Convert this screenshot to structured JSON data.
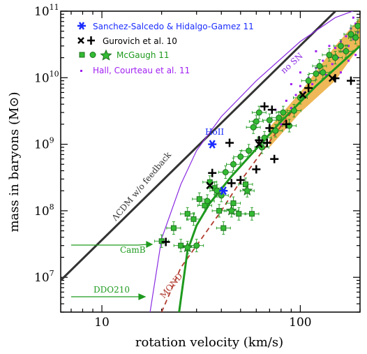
{
  "chart_data": {
    "type": "scatter",
    "xlabel": "rotation velocity (km/s)",
    "ylabel": "mass in baryons (M⊙)",
    "x_scale": "log",
    "y_scale": "log",
    "xlim": [
      6.2,
      200
    ],
    "ylim": [
      3000000,
      100000000000
    ],
    "x_ticks": [
      {
        "value": 10,
        "label": "10"
      },
      {
        "value": 100,
        "label": "100"
      }
    ],
    "y_ticks": [
      {
        "value": 10000000,
        "base": "10",
        "exp": "7"
      },
      {
        "value": 100000000,
        "base": "10",
        "exp": "8"
      },
      {
        "value": 1000000000,
        "base": "10",
        "exp": "9"
      },
      {
        "value": 10000000000,
        "base": "10",
        "exp": "10"
      },
      {
        "value": 100000000000,
        "base": "10",
        "exp": "11"
      }
    ],
    "colors": {
      "lcdm": "#333333",
      "no_sn": "#8a2be2",
      "mcgaugh": "#1e9a1e",
      "mcgaugh_fill": "#33bb33",
      "gurovich": "#000000",
      "sanchez": "#1a2cff",
      "hall": "#a020f0",
      "mond": "#b03a2e",
      "band": "#e8a020"
    },
    "legend": [
      {
        "label": "Sanchez-Salcedo & Hidalgo-Gamez 11",
        "color": "#1a2cff",
        "marker": "asterisk"
      },
      {
        "label": "Gurovich et al. 10",
        "color": "#000000",
        "marker": "cross-plus"
      },
      {
        "label": "McGaugh 11",
        "color": "#1e9a1e",
        "marker": "square-circle-star"
      },
      {
        "label": "Hall, Courteau et al. 11",
        "color": "#a020f0",
        "marker": "dot"
      }
    ],
    "annotations": {
      "lcdm": "ΛCDM w/o feedback",
      "no_sn": "no SN",
      "mond": "MOND",
      "holl": "HoII",
      "camb": "CamB",
      "ddo": "DDO210"
    },
    "lines": {
      "lcdm": {
        "x": [
          6.2,
          200
        ],
        "y": [
          9000000,
          230000000000
        ]
      },
      "no_sn": {
        "x": [
          17.5,
          20,
          25,
          30,
          40,
          60,
          100,
          150,
          200
        ],
        "y": [
          3000000,
          38000000,
          250000000,
          800000000,
          2600000000,
          9000000000,
          35000000000,
          80000000000,
          110000000000
        ]
      },
      "mcgaugh_fit": {
        "x": [
          24.5,
          27,
          30,
          35,
          45,
          60,
          80,
          120,
          200
        ],
        "y": [
          3000000,
          25000000,
          60000000,
          130000000,
          330000000,
          850000000,
          2200000000,
          7500000000,
          30000000000
        ]
      },
      "mond": {
        "x": [
          20,
          25,
          30,
          40,
          50,
          70,
          90
        ],
        "y": [
          3000000,
          14000000,
          30000000,
          100000000,
          280000000,
          1100000000,
          3000000000
        ]
      },
      "band": {
        "x": [
          70,
          100,
          150,
          200
        ],
        "y_low": [
          900000000,
          3000000000,
          9000000000,
          30000000000
        ],
        "y_high": [
          1800000000,
          6000000000,
          30000000000,
          80000000000
        ]
      }
    },
    "series": [
      {
        "name": "Sanchez-Salcedo & Hidalgo-Gamez 11",
        "marker": "asterisk",
        "points": [
          [
            36,
            1000000000
          ],
          [
            41,
            200000000
          ]
        ]
      },
      {
        "name": "Gurovich et al. 10",
        "marker": "plus",
        "points": [
          [
            21,
            34000000
          ],
          [
            36,
            370000000
          ],
          [
            44,
            1050000000
          ],
          [
            45,
            260000000
          ],
          [
            50,
            290000000
          ],
          [
            60,
            420000000
          ],
          [
            62,
            1150000000
          ],
          [
            66,
            3700000000
          ],
          [
            68,
            1050000000
          ],
          [
            70,
            1750000000
          ],
          [
            72,
            3300000000
          ],
          [
            74,
            600000000
          ],
          [
            85,
            2000000000
          ],
          [
            110,
            7000000000
          ],
          [
            150,
            9800000000
          ],
          [
            180,
            9000000000
          ]
        ]
      },
      {
        "name": "Gurovich et al. 10",
        "marker": "cross",
        "points": [
          [
            35,
            240000000
          ],
          [
            62,
            1000000000
          ],
          [
            103,
            5500000000
          ],
          [
            145,
            9800000000
          ]
        ]
      },
      {
        "name": "McGaugh 11",
        "marker": "square",
        "points": [
          [
            20,
            35000000
          ],
          [
            23,
            55000000
          ],
          [
            25,
            30000000
          ],
          [
            27,
            90000000
          ],
          [
            29,
            75000000
          ],
          [
            31,
            150000000
          ],
          [
            33,
            120000000
          ],
          [
            35,
            270000000
          ],
          [
            37,
            220000000
          ],
          [
            39,
            100000000
          ],
          [
            41,
            55000000
          ],
          [
            46,
            130000000
          ],
          [
            49,
            90000000
          ],
          [
            53,
            250000000
          ],
          [
            57,
            90000000
          ]
        ]
      },
      {
        "name": "McGaugh 11",
        "marker": "circle",
        "points": [
          [
            30,
            30000000
          ],
          [
            34,
            140000000
          ],
          [
            38,
            200000000
          ],
          [
            40,
            170000000
          ],
          [
            42,
            380000000
          ],
          [
            46,
            500000000
          ],
          [
            50,
            650000000
          ],
          [
            55,
            800000000
          ],
          [
            58,
            1800000000
          ],
          [
            60,
            2200000000
          ],
          [
            62,
            3000000000
          ],
          [
            64,
            900000000
          ],
          [
            66,
            1250000000
          ],
          [
            70,
            2300000000
          ],
          [
            75,
            1600000000
          ],
          [
            78,
            2500000000
          ],
          [
            82,
            3000000000
          ],
          [
            88,
            1900000000
          ],
          [
            93,
            3200000000
          ],
          [
            100,
            5000000000
          ],
          [
            110,
            9000000000
          ],
          [
            120,
            11500000000
          ],
          [
            125,
            15000000000
          ],
          [
            130,
            12000000000
          ],
          [
            140,
            22000000000
          ],
          [
            150,
            20000000000
          ],
          [
            160,
            30000000000
          ],
          [
            170,
            25000000000
          ],
          [
            180,
            45000000000
          ],
          [
            190,
            40000000000
          ],
          [
            195,
            60000000000
          ]
        ]
      },
      {
        "name": "McGaugh 11",
        "marker": "star",
        "points": [
          [
            27,
            28000000
          ],
          [
            45,
            100000000
          ],
          [
            54,
            200000000
          ]
        ]
      },
      {
        "name": "Hall, Courteau et al. 11",
        "marker": "dot",
        "points": [
          [
            70,
            1600000000
          ],
          [
            75,
            3300000000
          ],
          [
            80,
            2000000000
          ],
          [
            85,
            4500000000
          ],
          [
            90,
            3500000000
          ],
          [
            95,
            5500000000
          ],
          [
            100,
            7500000000
          ],
          [
            105,
            6000000000
          ],
          [
            110,
            10000000000
          ],
          [
            115,
            8000000000
          ],
          [
            120,
            14000000000
          ],
          [
            125,
            12000000000
          ],
          [
            130,
            18000000000
          ],
          [
            135,
            11000000000
          ],
          [
            140,
            22000000000
          ],
          [
            145,
            16000000000
          ],
          [
            150,
            28000000000
          ],
          [
            155,
            20000000000
          ],
          [
            160,
            35000000000
          ],
          [
            165,
            25000000000
          ],
          [
            170,
            42000000000
          ],
          [
            175,
            30000000000
          ],
          [
            180,
            55000000000
          ],
          [
            185,
            38000000000
          ],
          [
            190,
            65000000000
          ],
          [
            195,
            48000000000
          ],
          [
            160,
            12000000000
          ],
          [
            175,
            18000000000
          ],
          [
            190,
            22000000000
          ],
          [
            140,
            30000000000
          ],
          [
            120,
            25000000000
          ],
          [
            100,
            12000000000
          ],
          [
            90,
            8000000000
          ],
          [
            185,
            80000000000
          ]
        ]
      }
    ]
  }
}
